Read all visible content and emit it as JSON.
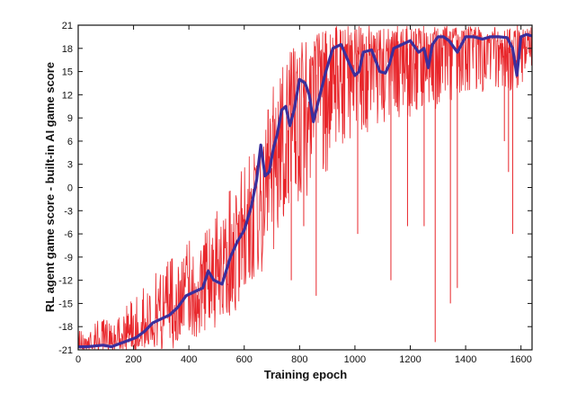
{
  "chart_data": {
    "type": "line",
    "title": "",
    "xlabel": "Training epoch",
    "ylabel": "RL agent game score - built-in AI game score",
    "xlim": [
      0,
      1640
    ],
    "ylim": [
      -21,
      21
    ],
    "x_ticks": [
      0,
      200,
      400,
      600,
      800,
      1000,
      1200,
      1400,
      1600
    ],
    "y_ticks": [
      -21,
      -18,
      -15,
      -12,
      -9,
      -6,
      -3,
      0,
      3,
      6,
      9,
      12,
      15,
      18,
      21
    ],
    "grid": false,
    "legend": "none",
    "colors": {
      "raw": "#e8262b",
      "smoothed": "#3b2f9c",
      "axis": "#111111"
    },
    "series": [
      {
        "style": "raw-per-epoch",
        "x": [
          0,
          50,
          100,
          150,
          200,
          250,
          300,
          350,
          400,
          450,
          500,
          550,
          600,
          650,
          700,
          750,
          800,
          850,
          900,
          950,
          1000,
          1050,
          1100,
          1150,
          1200,
          1250,
          1300,
          1350,
          1400,
          1450,
          1500,
          1550,
          1600,
          1640
        ],
        "y": [
          -20.5,
          -20.5,
          -20,
          -19.5,
          -19,
          -18,
          -16,
          -14,
          -13,
          -12,
          -11,
          -9,
          -6,
          -2,
          3,
          8,
          12,
          14,
          17,
          17,
          16,
          17,
          17,
          18,
          18,
          18,
          19,
          19,
          19,
          19,
          19,
          18,
          19,
          19
        ],
        "low": [
          -21,
          -21,
          -21,
          -21,
          -21,
          -21,
          -21,
          -21,
          -20,
          -19,
          -18,
          -17,
          -16,
          -12,
          -9,
          -5,
          -3,
          0,
          2,
          5,
          7,
          7,
          8,
          9,
          9,
          10,
          10,
          11,
          12,
          12,
          13,
          12,
          13,
          14
        ],
        "high": [
          -18,
          -17,
          -17,
          -16,
          -14,
          -12,
          -10,
          -8,
          -6,
          -5,
          -3,
          0,
          3,
          8,
          13,
          17,
          19,
          20,
          21,
          21,
          21,
          21,
          21,
          21,
          21,
          21,
          21,
          21,
          21,
          21,
          21,
          21,
          21,
          21
        ]
      },
      {
        "style": "smoothed",
        "x": [
          0,
          30,
          60,
          90,
          120,
          150,
          180,
          210,
          240,
          270,
          300,
          330,
          360,
          390,
          420,
          450,
          470,
          490,
          520,
          550,
          575,
          600,
          625,
          645,
          660,
          675,
          690,
          705,
          720,
          735,
          750,
          765,
          780,
          800,
          820,
          835,
          850,
          870,
          895,
          920,
          950,
          980,
          1000,
          1015,
          1030,
          1060,
          1090,
          1110,
          1125,
          1140,
          1170,
          1200,
          1230,
          1250,
          1265,
          1280,
          1300,
          1320,
          1340,
          1370,
          1400,
          1430,
          1460,
          1490,
          1520,
          1550,
          1570,
          1585,
          1600,
          1620,
          1640
        ],
        "y": [
          -20.6,
          -20.6,
          -20.5,
          -20.4,
          -20.6,
          -20.2,
          -19.8,
          -19.4,
          -18.6,
          -17.5,
          -17,
          -16.5,
          -15.5,
          -14,
          -13.5,
          -13,
          -10.8,
          -12,
          -12.5,
          -9,
          -7,
          -5.5,
          -2.5,
          1,
          5.5,
          1.5,
          2,
          5,
          7,
          10,
          10.5,
          8,
          10,
          14,
          13.5,
          12,
          8.5,
          11.5,
          15,
          18,
          18.5,
          16,
          14.5,
          15,
          17.5,
          17.8,
          15,
          14.8,
          16,
          18,
          18.5,
          19,
          17.5,
          18,
          15.5,
          18.5,
          19.5,
          19.5,
          19,
          17.5,
          19.5,
          19.5,
          19.2,
          19.5,
          19.5,
          19.4,
          18,
          14.5,
          19.5,
          19.8,
          19.6
        ]
      }
    ],
    "dips": [
      {
        "x": 770,
        "y": -12
      },
      {
        "x": 815,
        "y": -5
      },
      {
        "x": 860,
        "y": -14
      },
      {
        "x": 1010,
        "y": -6
      },
      {
        "x": 1130,
        "y": -12
      },
      {
        "x": 1190,
        "y": -5
      },
      {
        "x": 1250,
        "y": -5
      },
      {
        "x": 1290,
        "y": -20
      },
      {
        "x": 1345,
        "y": -15
      },
      {
        "x": 1370,
        "y": -13
      },
      {
        "x": 1540,
        "y": 6
      },
      {
        "x": 1555,
        "y": 2
      },
      {
        "x": 1570,
        "y": -6
      }
    ]
  }
}
